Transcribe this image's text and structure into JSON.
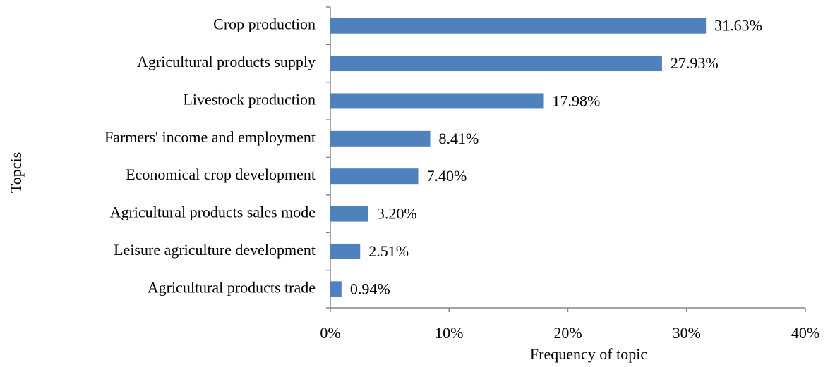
{
  "chart_data": {
    "type": "bar",
    "orientation": "horizontal",
    "categories": [
      "Crop production",
      "Agricultural products supply",
      "Livestock production",
      "Farmers' income and employment",
      "Economical crop development",
      "Agricultural products sales mode",
      "Leisure agriculture development",
      "Agricultural products trade"
    ],
    "values": [
      31.63,
      27.93,
      17.98,
      8.41,
      7.4,
      3.2,
      2.51,
      0.94
    ],
    "value_labels": [
      "31.63%",
      "27.93%",
      "17.98%",
      "8.41%",
      "7.40%",
      "3.20%",
      "2.51%",
      "0.94%"
    ],
    "color": "#4f81bd",
    "xlim": [
      0,
      40
    ],
    "xticks": [
      {
        "value": 0,
        "label": "0%"
      },
      {
        "value": 10,
        "label": "10%"
      },
      {
        "value": 20,
        "label": "20%"
      },
      {
        "value": 30,
        "label": "30%"
      },
      {
        "value": 40,
        "label": "40%"
      }
    ],
    "xlabel": "Frequency of topic",
    "ylabel": "Topcis",
    "grid": false
  }
}
